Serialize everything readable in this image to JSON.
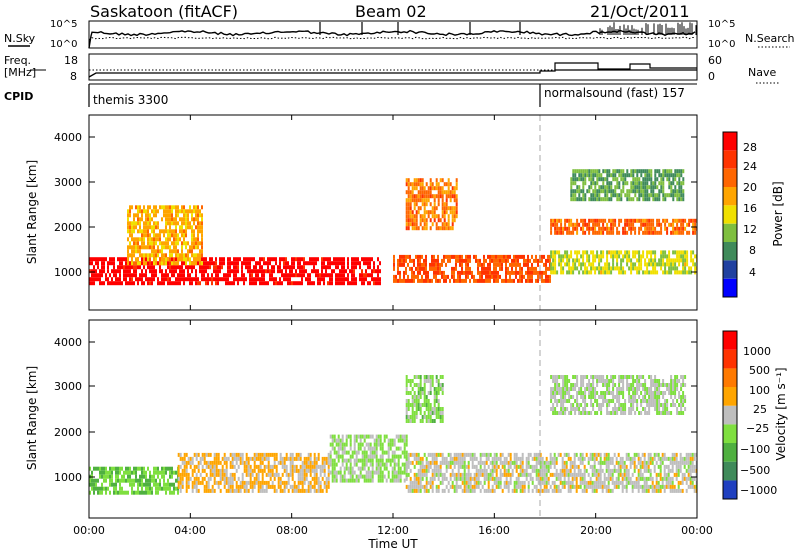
{
  "header": {
    "station": "Saskatoon (fitACF)",
    "beam": "Beam 02",
    "date": "21/Oct/2011"
  },
  "noise_panel": {
    "left_label": "N.Sky",
    "left_ticks": [
      "10^5",
      "10^0"
    ],
    "right_ticks": [
      "10^5",
      "10^0"
    ],
    "right_label": "N.Search"
  },
  "freq_panel": {
    "left_label_1": "Freq.",
    "left_label_2": "[MHz]",
    "left_ticks": [
      "18",
      "8"
    ],
    "right_ticks": [
      "60",
      "0"
    ],
    "right_label": "Nave"
  },
  "cpid_panel": {
    "label": "CPID",
    "program_1": "themis 3300",
    "program_2": "normalsound (fast) 157"
  },
  "power_panel": {
    "ylabel": "Slant Range [km]",
    "yticks": [
      "4000",
      "3000",
      "2000",
      "1000"
    ],
    "colorbar_label": "Power [dB]",
    "colorbar_ticks": [
      "28",
      "24",
      "20",
      "16",
      "12",
      "8",
      "4"
    ],
    "colors": [
      "#0000ff",
      "#2040a0",
      "#3f8a5a",
      "#7fbf3f",
      "#f0e000",
      "#ffa500",
      "#ff6600",
      "#ff3300",
      "#ff0000"
    ]
  },
  "velocity_panel": {
    "ylabel": "Slant Range [km]",
    "yticks": [
      "4000",
      "3000",
      "2000",
      "1000"
    ],
    "colorbar_label": "Velocity [m s⁻¹]",
    "colorbar_ticks": [
      "1000",
      "500",
      "100",
      "25",
      "−25",
      "−100",
      "−500",
      "−1000"
    ],
    "colors": [
      "#2040c0",
      "#3f8a5a",
      "#4fb040",
      "#7fdf3f",
      "#bebebe",
      "#ffa500",
      "#ff7a00",
      "#ff3300",
      "#ff0000"
    ]
  },
  "xaxis": {
    "ticks": [
      "00:00",
      "04:00",
      "08:00",
      "12:00",
      "16:00",
      "20:00",
      "00:00"
    ],
    "label": "Time UT"
  },
  "chart_data": [
    {
      "type": "heatmap",
      "title": "Power [dB]",
      "xlabel": "Time UT",
      "ylabel": "Slant Range [km]",
      "xlim": [
        "00:00",
        "24:00"
      ],
      "ylim": [
        180,
        4500
      ],
      "colorscale": {
        "min": 0,
        "max": 30,
        "ticks": [
          4,
          8,
          12,
          16,
          20,
          24,
          28
        ]
      },
      "regions": [
        {
          "t_start": 0.0,
          "t_end": 11.5,
          "range_low": 750,
          "range_high": 1350,
          "power": 29
        },
        {
          "t_start": 12.0,
          "t_end": 18.2,
          "range_low": 800,
          "range_high": 1400,
          "power": 23
        },
        {
          "t_start": 18.2,
          "t_end": 24.0,
          "range_low": 1000,
          "range_high": 1500,
          "power": 14
        },
        {
          "t_start": 18.2,
          "t_end": 24.0,
          "range_low": 1900,
          "range_high": 2200,
          "power": 22
        },
        {
          "t_start": 1.5,
          "t_end": 4.5,
          "range_low": 1200,
          "range_high": 2500,
          "power": 18
        },
        {
          "t_start": 12.5,
          "t_end": 14.5,
          "range_low": 2000,
          "range_high": 3100,
          "power": 21
        },
        {
          "t_start": 19.0,
          "t_end": 23.5,
          "range_low": 2600,
          "range_high": 3300,
          "power": 10
        }
      ]
    },
    {
      "type": "heatmap",
      "title": "Velocity [m s⁻¹]",
      "xlabel": "Time UT",
      "ylabel": "Slant Range [km]",
      "xlim": [
        "00:00",
        "24:00"
      ],
      "ylim": [
        180,
        4500
      ],
      "colorscale": {
        "min": -1000,
        "max": 1000,
        "ticks": [
          1000,
          500,
          100,
          25,
          -25,
          -100,
          -500,
          -1000
        ]
      },
      "regions": [
        {
          "t_start": 0.0,
          "t_end": 3.5,
          "range_low": 700,
          "range_high": 1300,
          "velocity": -300
        },
        {
          "t_start": 3.5,
          "t_end": 9.5,
          "range_low": 800,
          "range_high": 1600,
          "velocity": 150
        },
        {
          "t_start": 9.5,
          "t_end": 12.5,
          "range_low": 1000,
          "range_high": 2000,
          "velocity": -150
        },
        {
          "t_start": 12.5,
          "t_end": 24.0,
          "range_low": 800,
          "range_high": 1600,
          "velocity": 0
        },
        {
          "t_start": 12.5,
          "t_end": 14.0,
          "range_low": 2300,
          "range_high": 3300,
          "velocity": -200
        },
        {
          "t_start": 18.2,
          "t_end": 23.5,
          "range_low": 2500,
          "range_high": 3300,
          "velocity": -80
        }
      ]
    }
  ]
}
